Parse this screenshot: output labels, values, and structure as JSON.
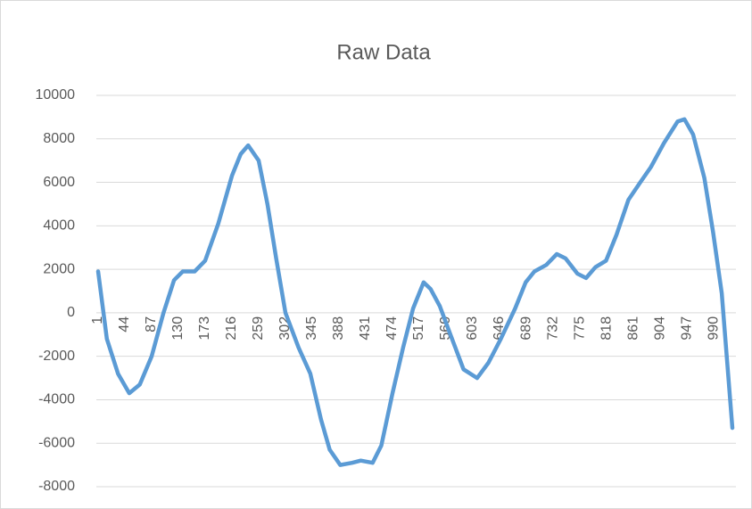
{
  "chart_data": {
    "type": "line",
    "title": "Raw Data",
    "x": [
      1,
      15,
      33,
      51,
      68,
      87,
      106,
      123,
      137,
      156,
      173,
      194,
      216,
      230,
      242,
      259,
      273,
      287,
      302,
      323,
      342,
      359,
      373,
      390,
      409,
      423,
      442,
      456,
      474,
      491,
      507,
      524,
      535,
      550,
      567,
      588,
      610,
      628,
      648,
      671,
      688,
      702,
      721,
      738,
      752,
      771,
      785,
      800,
      817,
      834,
      853,
      872,
      889,
      910,
      932,
      943,
      957,
      975,
      989,
      1003,
      1020
    ],
    "values": [
      1900,
      -1200,
      -2800,
      -3700,
      -3300,
      -2000,
      0,
      1500,
      1900,
      1900,
      2400,
      4100,
      6300,
      7300,
      7700,
      7000,
      5000,
      2500,
      0,
      -1600,
      -2800,
      -4900,
      -6300,
      -7000,
      -6900,
      -6800,
      -6900,
      -6100,
      -3700,
      -1600,
      200,
      1400,
      1100,
      300,
      -1000,
      -2600,
      -3000,
      -2300,
      -1200,
      200,
      1400,
      1900,
      2200,
      2700,
      2500,
      1800,
      1600,
      2100,
      2400,
      3600,
      5200,
      6000,
      6700,
      7800,
      8800,
      8900,
      8200,
      6200,
      3700,
      900,
      -5300
    ],
    "color": "#5b9bd5",
    "xlim": [
      1,
      1020
    ],
    "xticks": [
      1,
      44,
      87,
      130,
      173,
      216,
      259,
      302,
      345,
      388,
      431,
      474,
      517,
      560,
      603,
      646,
      689,
      732,
      775,
      818,
      861,
      904,
      947,
      990
    ],
    "ylim": [
      -8000,
      10000
    ],
    "yticks": [
      -8000,
      -6000,
      -4000,
      -2000,
      0,
      2000,
      4000,
      6000,
      8000,
      10000
    ],
    "grid": true
  }
}
